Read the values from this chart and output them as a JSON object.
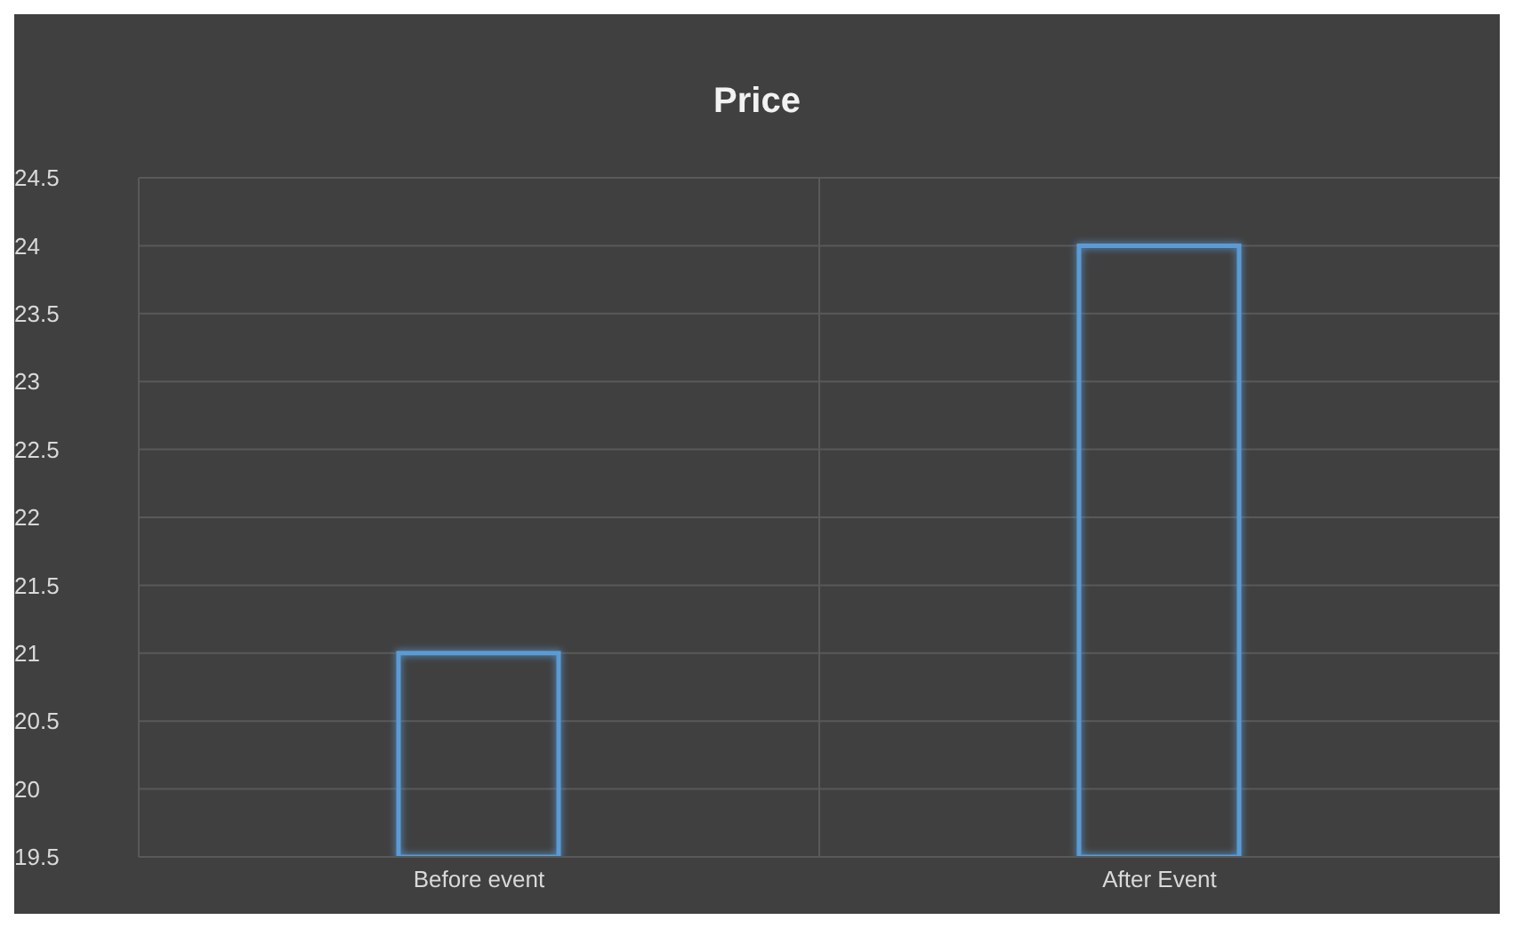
{
  "chart_data": {
    "type": "bar",
    "title": "Price",
    "categories": [
      "Before event",
      "After Event"
    ],
    "values": [
      21,
      24
    ],
    "color": "#5b9bd5",
    "ylim": [
      19.5,
      24.5
    ],
    "yticks": [
      19.5,
      20,
      20.5,
      21,
      21.5,
      22,
      22.5,
      23,
      23.5,
      24,
      24.5
    ],
    "grid": true
  }
}
